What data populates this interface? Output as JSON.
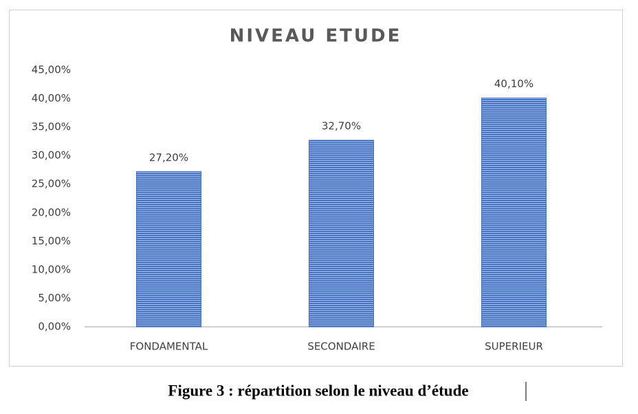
{
  "chart_data": {
    "type": "bar",
    "title": "NIVEAU ETUDE",
    "categories": [
      "FONDAMENTAL",
      "SECONDAIRE",
      "SUPERIEUR"
    ],
    "values": [
      27.2,
      32.7,
      40.1
    ],
    "value_labels": [
      "27,20%",
      "32,70%",
      "40,10%"
    ],
    "color": "#4472c4",
    "ylim": [
      0,
      45
    ],
    "yticks": [
      {
        "value": 0,
        "label": "0,00%"
      },
      {
        "value": 5,
        "label": "5,00%"
      },
      {
        "value": 10,
        "label": "10,00%"
      },
      {
        "value": 15,
        "label": "15,00%"
      },
      {
        "value": 20,
        "label": "20,00%"
      },
      {
        "value": 25,
        "label": "25,00%"
      },
      {
        "value": 30,
        "label": "30,00%"
      },
      {
        "value": 35,
        "label": "35,00%"
      },
      {
        "value": 40,
        "label": "40,00%"
      },
      {
        "value": 45,
        "label": "45,00%"
      }
    ],
    "grid": false,
    "caption": "Figure 3 : répartition selon le niveau d’étude"
  }
}
